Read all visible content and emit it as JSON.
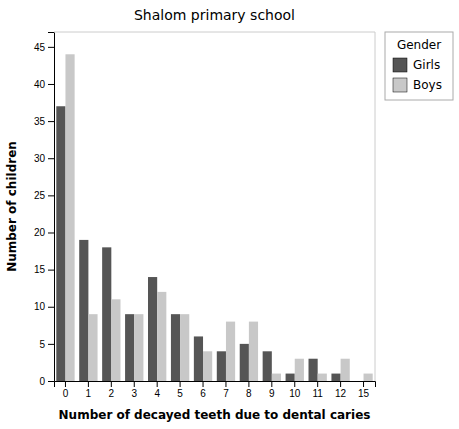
{
  "chart_data": {
    "type": "bar",
    "title": "Shalom primary school",
    "xlabel": "Number of decayed teeth due to dental caries",
    "ylabel": "Number of children",
    "categories": [
      "0",
      "1",
      "2",
      "3",
      "4",
      "5",
      "6",
      "7",
      "8",
      "9",
      "10",
      "11",
      "12",
      "15"
    ],
    "series": [
      {
        "name": "Girls",
        "color": "#555555",
        "values": [
          37,
          19,
          18,
          9,
          14,
          9,
          6,
          4,
          5,
          4,
          1,
          3,
          1,
          0
        ]
      },
      {
        "name": "Boys",
        "color": "#c8c8c8",
        "values": [
          44,
          9,
          11,
          9,
          12,
          9,
          4,
          8,
          8,
          1,
          3,
          1,
          3,
          1
        ]
      }
    ],
    "ylim": [
      0,
      47
    ],
    "yticks": [
      0,
      5,
      10,
      15,
      20,
      25,
      30,
      35,
      40,
      45
    ],
    "legend_title": "Gender",
    "legend": "right",
    "grid": false
  }
}
